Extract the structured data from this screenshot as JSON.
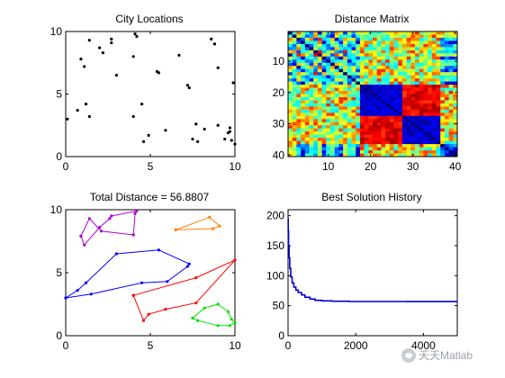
{
  "chart_data": [
    {
      "type": "scatter",
      "title": "City Locations",
      "xlim": [
        0,
        10
      ],
      "ylim": [
        0,
        10
      ],
      "xticks": [
        0,
        5,
        10
      ],
      "yticks": [
        0,
        5,
        10
      ],
      "tick_labels_x": [
        "0",
        "5",
        "10"
      ],
      "tick_labels_y": [
        "0",
        "5",
        "10"
      ],
      "marker": "dot",
      "color": "#000000",
      "points": [
        [
          0.1,
          3.0
        ],
        [
          0.7,
          3.7
        ],
        [
          0.9,
          7.8
        ],
        [
          1.1,
          7.2
        ],
        [
          1.2,
          4.2
        ],
        [
          1.4,
          3.2
        ],
        [
          1.4,
          9.3
        ],
        [
          2.0,
          8.7
        ],
        [
          2.2,
          8.3
        ],
        [
          2.7,
          9.4
        ],
        [
          2.7,
          9.1
        ],
        [
          3.0,
          6.5
        ],
        [
          4.0,
          3.2
        ],
        [
          4.0,
          8.0
        ],
        [
          4.1,
          9.8
        ],
        [
          4.2,
          9.6
        ],
        [
          4.5,
          4.2
        ],
        [
          4.6,
          1.2
        ],
        [
          4.9,
          1.7
        ],
        [
          5.4,
          6.8
        ],
        [
          5.5,
          6.7
        ],
        [
          5.9,
          2.1
        ],
        [
          6.7,
          8.1
        ],
        [
          7.2,
          5.7
        ],
        [
          7.3,
          5.5
        ],
        [
          7.5,
          1.4
        ],
        [
          7.7,
          2.6
        ],
        [
          7.8,
          1.2
        ],
        [
          8.2,
          2.2
        ],
        [
          8.6,
          9.4
        ],
        [
          8.8,
          9.0
        ],
        [
          9.0,
          2.5
        ],
        [
          9.0,
          7.1
        ],
        [
          9.4,
          1.4
        ],
        [
          9.6,
          1.9
        ],
        [
          9.7,
          2.0
        ],
        [
          9.8,
          1.3
        ],
        [
          9.9,
          5.9
        ],
        [
          10.0,
          1.0
        ],
        [
          9.7,
          2.3
        ]
      ]
    },
    {
      "type": "heatmap",
      "title": "Distance Matrix",
      "xlim": [
        0.5,
        40.5
      ],
      "ylim": [
        0.5,
        40.5
      ],
      "xticks": [
        10,
        20,
        30,
        40
      ],
      "yticks": [
        10,
        20,
        30,
        40
      ],
      "tick_labels_x": [
        "10",
        "20",
        "30",
        "40"
      ],
      "tick_labels_y": [
        "10",
        "20",
        "30",
        "40"
      ],
      "colormap": "jet",
      "size": 40,
      "clusters": [
        0,
        1,
        4,
        3,
        2,
        1,
        4,
        0,
        3,
        2,
        1,
        4,
        3,
        0,
        2,
        1,
        3,
        4,
        2,
        0,
        4,
        4,
        4,
        4,
        4,
        4,
        4,
        4,
        4,
        4,
        4,
        3,
        3,
        3,
        3,
        3,
        3,
        3,
        3,
        3
      ],
      "block_bands": [
        [
          18,
          27
        ],
        [
          28,
          36
        ]
      ]
    },
    {
      "type": "line",
      "title": "Total Distance = 56.8807",
      "xlim": [
        0,
        10
      ],
      "ylim": [
        0,
        10
      ],
      "xticks": [
        0,
        5,
        10
      ],
      "yticks": [
        0,
        5,
        10
      ],
      "tick_labels_x": [
        "0",
        "5",
        "10"
      ],
      "tick_labels_y": [
        "0",
        "5",
        "10"
      ],
      "routes": [
        {
          "color": "#0000ff",
          "points": [
            [
              0.0,
              3.0
            ],
            [
              0.7,
              3.6
            ],
            [
              1.2,
              4.2
            ],
            [
              3.0,
              6.5
            ],
            [
              5.5,
              6.8
            ],
            [
              7.3,
              5.7
            ],
            [
              7.2,
              5.5
            ],
            [
              6.0,
              4.3
            ],
            [
              4.5,
              4.2
            ],
            [
              1.5,
              3.3
            ],
            [
              0.0,
              3.0
            ]
          ]
        },
        {
          "color": "#ff0000",
          "points": [
            [
              4.0,
              3.2
            ],
            [
              4.6,
              1.2
            ],
            [
              4.9,
              1.7
            ],
            [
              5.9,
              2.1
            ],
            [
              7.7,
              2.6
            ],
            [
              10.0,
              6.0
            ],
            [
              7.7,
              4.6
            ],
            [
              4.0,
              3.2
            ]
          ]
        },
        {
          "color": "#00dd00",
          "points": [
            [
              7.5,
              1.4
            ],
            [
              7.8,
              1.2
            ],
            [
              9.0,
              0.8
            ],
            [
              9.7,
              0.8
            ],
            [
              10.0,
              1.0
            ],
            [
              9.8,
              1.3
            ],
            [
              9.6,
              1.9
            ],
            [
              9.0,
              2.5
            ],
            [
              8.2,
              2.2
            ],
            [
              7.5,
              1.4
            ]
          ]
        },
        {
          "color": "#ff8000",
          "points": [
            [
              6.5,
              8.4
            ],
            [
              8.5,
              9.4
            ],
            [
              9.1,
              8.7
            ],
            [
              8.7,
              8.5
            ],
            [
              6.5,
              8.4
            ]
          ]
        },
        {
          "color": "#aa00cc",
          "points": [
            [
              0.9,
              7.9
            ],
            [
              1.1,
              7.2
            ],
            [
              2.0,
              8.6
            ],
            [
              2.6,
              9.3
            ],
            [
              2.7,
              9.5
            ],
            [
              4.2,
              9.9
            ],
            [
              4.1,
              9.7
            ],
            [
              4.0,
              8.0
            ],
            [
              2.1,
              8.3
            ],
            [
              1.4,
              9.3
            ],
            [
              0.9,
              7.9
            ]
          ]
        }
      ]
    },
    {
      "type": "line",
      "title": "Best Solution History",
      "xlim": [
        0,
        5000
      ],
      "ylim": [
        0,
        210
      ],
      "xticks": [
        0,
        2000,
        4000
      ],
      "yticks": [
        0,
        50,
        100,
        150,
        200
      ],
      "tick_labels_x": [
        "0",
        "2000",
        "4000"
      ],
      "tick_labels_y": [
        "0",
        "50",
        "100",
        "150",
        "200"
      ],
      "series": [
        {
          "color": "#0000cc",
          "x": [
            0,
            5,
            15,
            30,
            50,
            80,
            120,
            170,
            230,
            300,
            400,
            500,
            650,
            800,
            1000,
            1300,
            1800,
            2500,
            3500,
            5000
          ],
          "y": [
            195,
            175,
            150,
            130,
            112,
            98,
            88,
            81,
            76,
            72,
            68,
            64,
            61,
            59,
            58,
            57.5,
            57.0,
            57.0,
            56.9,
            56.9
          ]
        }
      ]
    }
  ],
  "watermark": {
    "text": "天天Matlab",
    "icon": "wechat-icon"
  }
}
